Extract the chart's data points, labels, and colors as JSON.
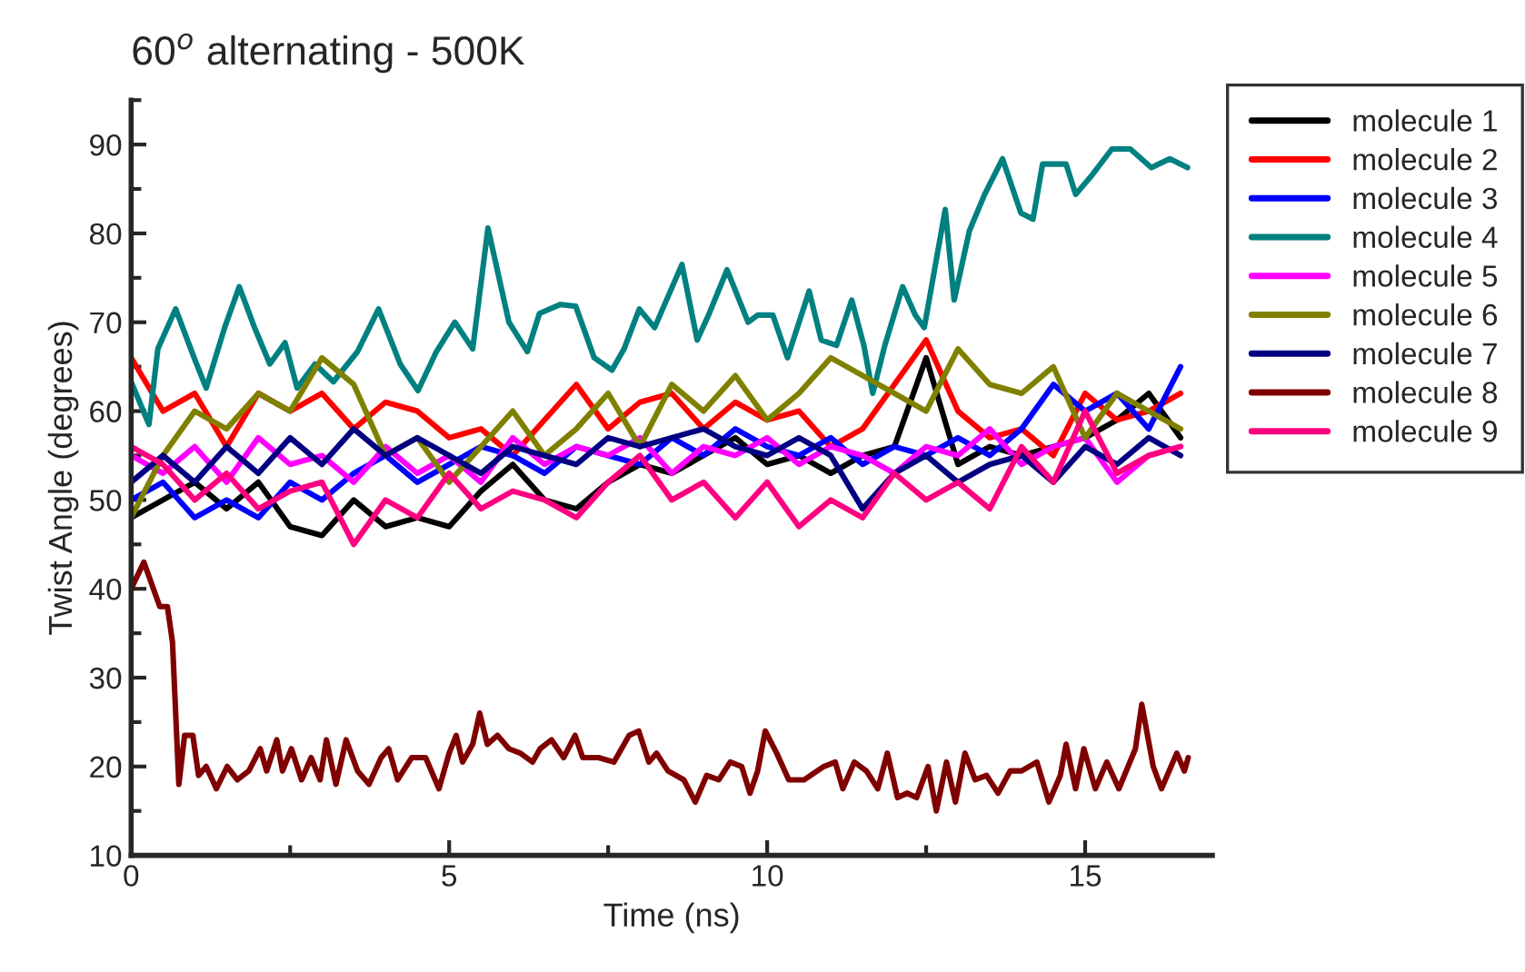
{
  "chart_data": {
    "type": "line",
    "title": "60$^{o}$ alternating - 500K",
    "xlabel": "Time (ns)",
    "ylabel": "Twist Angle (degrees)",
    "xlim": [
      0,
      17
    ],
    "ylim": [
      10,
      95
    ],
    "xticks": [
      0,
      5,
      10,
      15
    ],
    "yticks": [
      10,
      20,
      30,
      40,
      50,
      60,
      70,
      80,
      90
    ],
    "grid": false,
    "legend": "right",
    "marker": "none",
    "line_style": "solid",
    "x": [
      0,
      0.5,
      1,
      1.5,
      2,
      2.5,
      3,
      3.5,
      4,
      4.5,
      5,
      5.5,
      6,
      6.5,
      7,
      7.5,
      8,
      8.5,
      9,
      9.5,
      10,
      10.5,
      11,
      11.5,
      12,
      12.5,
      13,
      13.5,
      14,
      14.5,
      15,
      15.5,
      16,
      16.5
    ],
    "series": [
      {
        "name": "molecule 1",
        "color": "#000000",
        "values": [
          48,
          50,
          52,
          49,
          52,
          47,
          46,
          50,
          47,
          48,
          47,
          51,
          54,
          50,
          49,
          52,
          54,
          53,
          55,
          57,
          54,
          55,
          53,
          55,
          56,
          66,
          54,
          56,
          55,
          56,
          57,
          59,
          62,
          57
        ]
      },
      {
        "name": "molecule 2",
        "color": "#ff0000",
        "values": [
          66,
          60,
          62,
          56,
          62,
          60,
          62,
          58,
          61,
          60,
          57,
          58,
          55,
          59,
          63,
          58,
          61,
          62,
          58,
          61,
          59,
          60,
          56,
          58,
          63,
          68,
          60,
          57,
          58,
          55,
          62,
          59,
          60,
          62
        ]
      },
      {
        "name": "molecule 3",
        "color": "#0000ff",
        "values": [
          50,
          52,
          48,
          50,
          48,
          52,
          50,
          53,
          55,
          52,
          54,
          56,
          55,
          53,
          56,
          55,
          54,
          57,
          55,
          58,
          56,
          55,
          57,
          54,
          56,
          55,
          57,
          55,
          58,
          63,
          60,
          62,
          58,
          65
        ]
      },
      {
        "name": "molecule 4",
        "color": "#008080",
        "x": [
          0,
          0.28,
          0.42,
          0.7,
          0.99,
          1.18,
          1.47,
          1.7,
          1.94,
          2.18,
          2.42,
          2.61,
          2.89,
          3.18,
          3.56,
          3.89,
          4.23,
          4.51,
          4.8,
          5.09,
          5.37,
          5.61,
          5.94,
          6.23,
          6.42,
          6.75,
          6.99,
          7.28,
          7.56,
          7.75,
          7.99,
          8.23,
          8.66,
          8.9,
          9.09,
          9.37,
          9.7,
          9.85,
          10.09,
          10.32,
          10.66,
          10.85,
          11.09,
          11.33,
          11.52,
          11.66,
          11.85,
          12.13,
          12.33,
          12.47,
          12.8,
          12.94,
          13.18,
          13.42,
          13.7,
          13.99,
          14.18,
          14.33,
          14.7,
          14.85,
          15.09,
          15.42,
          15.71,
          16.04,
          16.33,
          16.61
        ],
        "values": [
          63.3,
          58.5,
          67,
          71.5,
          66,
          62.6,
          69.4,
          74,
          69.4,
          65.3,
          67.7,
          62.6,
          65.3,
          63.3,
          66.7,
          71.5,
          65.3,
          62.3,
          66.7,
          70,
          67,
          80.6,
          70,
          66.7,
          71,
          72,
          71.8,
          66,
          64.6,
          67,
          71.5,
          69.4,
          76.5,
          68,
          71,
          75.9,
          70,
          70.8,
          70.8,
          66,
          73.5,
          68,
          67.4,
          72.5,
          67.4,
          62,
          67.4,
          74,
          70.8,
          69.4,
          82.7,
          72.5,
          80.3,
          84.4,
          88.4,
          82.3,
          81.6,
          87.8,
          87.8,
          84.4,
          86.4,
          89.5,
          89.5,
          87.4,
          88.4,
          87.4
        ]
      },
      {
        "name": "molecule 5",
        "color": "#ff00ff",
        "values": [
          55,
          53,
          56,
          52,
          57,
          54,
          55,
          52,
          56,
          53,
          55,
          52,
          57,
          54,
          56,
          55,
          57,
          53,
          56,
          55,
          57,
          54,
          56,
          55,
          53,
          56,
          55,
          58,
          54,
          56,
          57,
          52,
          55,
          56
        ]
      },
      {
        "name": "molecule 6",
        "color": "#808000",
        "values": [
          48,
          55,
          60,
          58,
          62,
          60,
          66,
          63,
          55,
          57,
          52,
          56,
          60,
          55,
          58,
          62,
          56,
          63,
          60,
          64,
          59,
          62,
          66,
          64,
          62,
          60,
          67,
          63,
          62,
          65,
          57,
          62,
          60,
          58
        ]
      },
      {
        "name": "molecule 7",
        "color": "#000080",
        "values": [
          52,
          55,
          52,
          56,
          53,
          57,
          54,
          58,
          55,
          57,
          55,
          53,
          56,
          55,
          54,
          57,
          56,
          57,
          58,
          56,
          55,
          57,
          55,
          49,
          53,
          55,
          52,
          54,
          55,
          52,
          56,
          54,
          57,
          55
        ]
      },
      {
        "name": "molecule 8",
        "color": "#800000",
        "x": [
          0,
          0.2,
          0.45,
          0.57,
          0.65,
          0.75,
          0.84,
          0.97,
          1.06,
          1.18,
          1.34,
          1.51,
          1.67,
          1.85,
          2.03,
          2.13,
          2.29,
          2.38,
          2.52,
          2.68,
          2.83,
          2.97,
          3.07,
          3.22,
          3.38,
          3.56,
          3.74,
          3.93,
          4.05,
          4.19,
          4.41,
          4.63,
          4.84,
          5.0,
          5.11,
          5.21,
          5.37,
          5.48,
          5.6,
          5.76,
          5.94,
          6.12,
          6.31,
          6.43,
          6.61,
          6.8,
          6.98,
          7.1,
          7.35,
          7.59,
          7.83,
          7.98,
          8.14,
          8.26,
          8.44,
          8.69,
          8.87,
          9.05,
          9.24,
          9.42,
          9.6,
          9.73,
          9.85,
          9.97,
          10.15,
          10.34,
          10.58,
          10.89,
          11.07,
          11.19,
          11.37,
          11.56,
          11.74,
          11.89,
          12.05,
          12.2,
          12.35,
          12.53,
          12.66,
          12.82,
          12.96,
          13.11,
          13.27,
          13.45,
          13.63,
          13.82,
          14.0,
          14.24,
          14.43,
          14.61,
          14.7,
          14.85,
          14.98,
          15.16,
          15.34,
          15.53,
          15.79,
          15.89,
          16.07,
          16.2,
          16.44,
          16.56,
          16.62
        ],
        "values": [
          40,
          43,
          38,
          38,
          34,
          18,
          23.5,
          23.5,
          19,
          20,
          17.5,
          20,
          18.5,
          19.5,
          22,
          19.5,
          23,
          19.5,
          22,
          18.5,
          21,
          18.5,
          23,
          18,
          23,
          19.5,
          18,
          21,
          22,
          18.5,
          21,
          21,
          17.5,
          21.5,
          23.5,
          20.5,
          22.5,
          26,
          22.5,
          23.5,
          22,
          21.5,
          20.5,
          22,
          23,
          21,
          23.5,
          21,
          21,
          20.5,
          23.5,
          24,
          20.5,
          21.5,
          19.5,
          18.5,
          16,
          19,
          18.5,
          20.5,
          20,
          17,
          19.5,
          24,
          21.5,
          18.5,
          18.5,
          20,
          20.5,
          17.5,
          20.5,
          19.5,
          17.5,
          21.5,
          16.5,
          17,
          16.5,
          20,
          15,
          20.5,
          16,
          21.5,
          18.5,
          19,
          17,
          19.5,
          19.5,
          20.5,
          16,
          19,
          22.5,
          17.5,
          22,
          17.5,
          20.5,
          17.5,
          22,
          27,
          20,
          17.5,
          21.5,
          19.5,
          21
        ]
      },
      {
        "name": "molecule 9",
        "color": "#ff0080",
        "values": [
          56,
          54,
          50,
          53,
          49,
          51,
          52,
          45,
          50,
          48,
          53,
          49,
          51,
          50,
          48,
          52,
          55,
          50,
          52,
          48,
          52,
          47,
          50,
          48,
          53,
          50,
          52,
          49,
          56,
          52,
          60,
          53,
          55,
          56
        ]
      }
    ]
  }
}
